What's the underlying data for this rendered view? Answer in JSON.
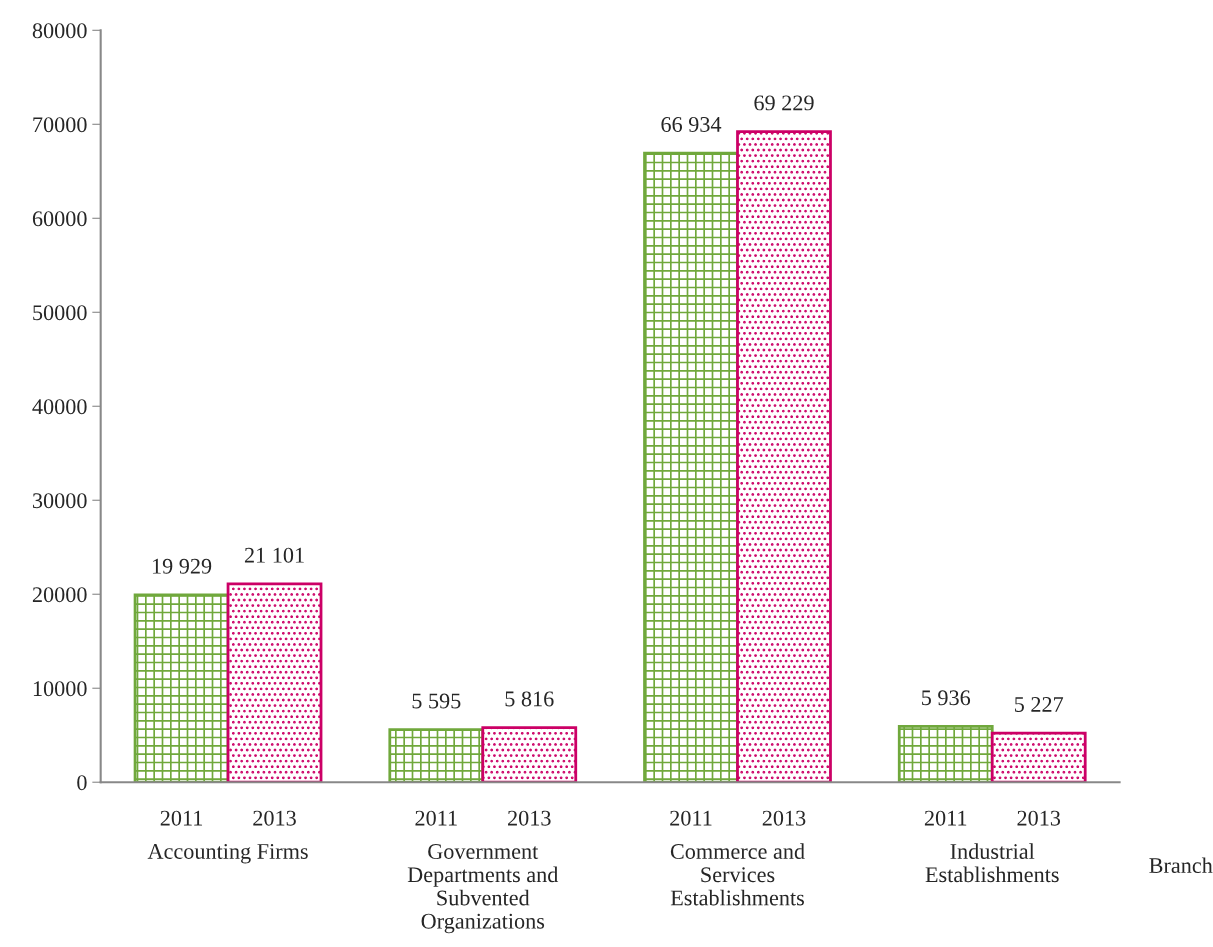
{
  "chart_data": {
    "type": "bar",
    "categories": [
      "Accounting Firms",
      "Government\nDepartments and\nSubvented\nOrganizations",
      "Commerce and\nServices\nEstablishments",
      "Industrial\nEstablishments"
    ],
    "series": [
      {
        "name": "2011",
        "color": "#70a83c",
        "values": [
          19929,
          5595,
          66934,
          5936
        ],
        "value_labels": [
          "19 929",
          "5 595",
          "66 934",
          "5 936"
        ]
      },
      {
        "name": "2013",
        "color": "#cc0066",
        "values": [
          21101,
          5816,
          69229,
          5227
        ],
        "value_labels": [
          "21 101",
          "5 816",
          "69 229",
          "5 227"
        ]
      }
    ],
    "xlabel": "Branch",
    "ylim": [
      0,
      80000
    ],
    "yticks": [
      0,
      10000,
      20000,
      30000,
      40000,
      50000,
      60000,
      70000,
      80000
    ],
    "grid": false,
    "legend": false
  }
}
